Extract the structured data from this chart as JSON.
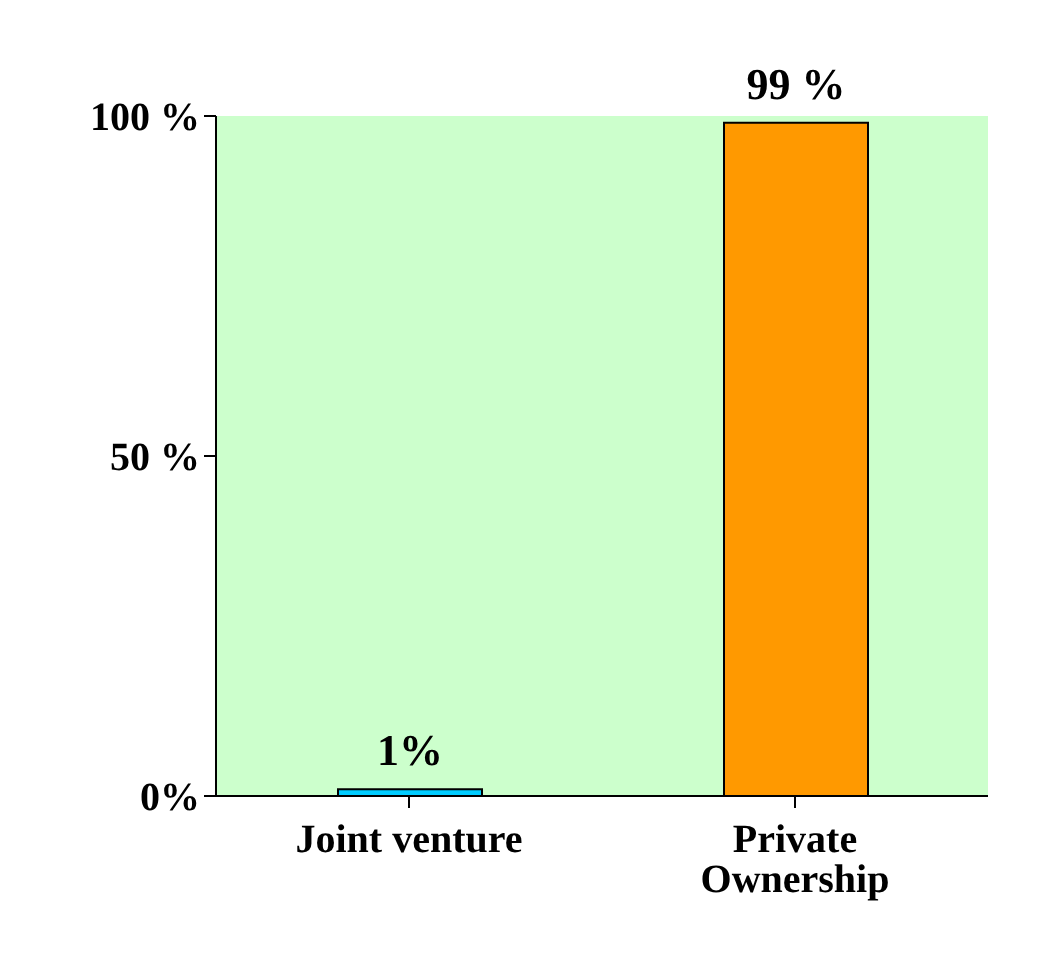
{
  "chart_data": {
    "type": "bar",
    "categories": [
      "Joint venture",
      "Private Ownership"
    ],
    "values": [
      1,
      99
    ],
    "colors": [
      "#00ccff",
      "#ff9900"
    ],
    "value_labels": [
      "1%",
      "99 %"
    ],
    "ylim": [
      0,
      100
    ],
    "yticks": [
      {
        "value": 0,
        "label": "0%"
      },
      {
        "value": 50,
        "label": "50 %"
      },
      {
        "value": 100,
        "label": "100 %"
      }
    ],
    "grid": false
  }
}
